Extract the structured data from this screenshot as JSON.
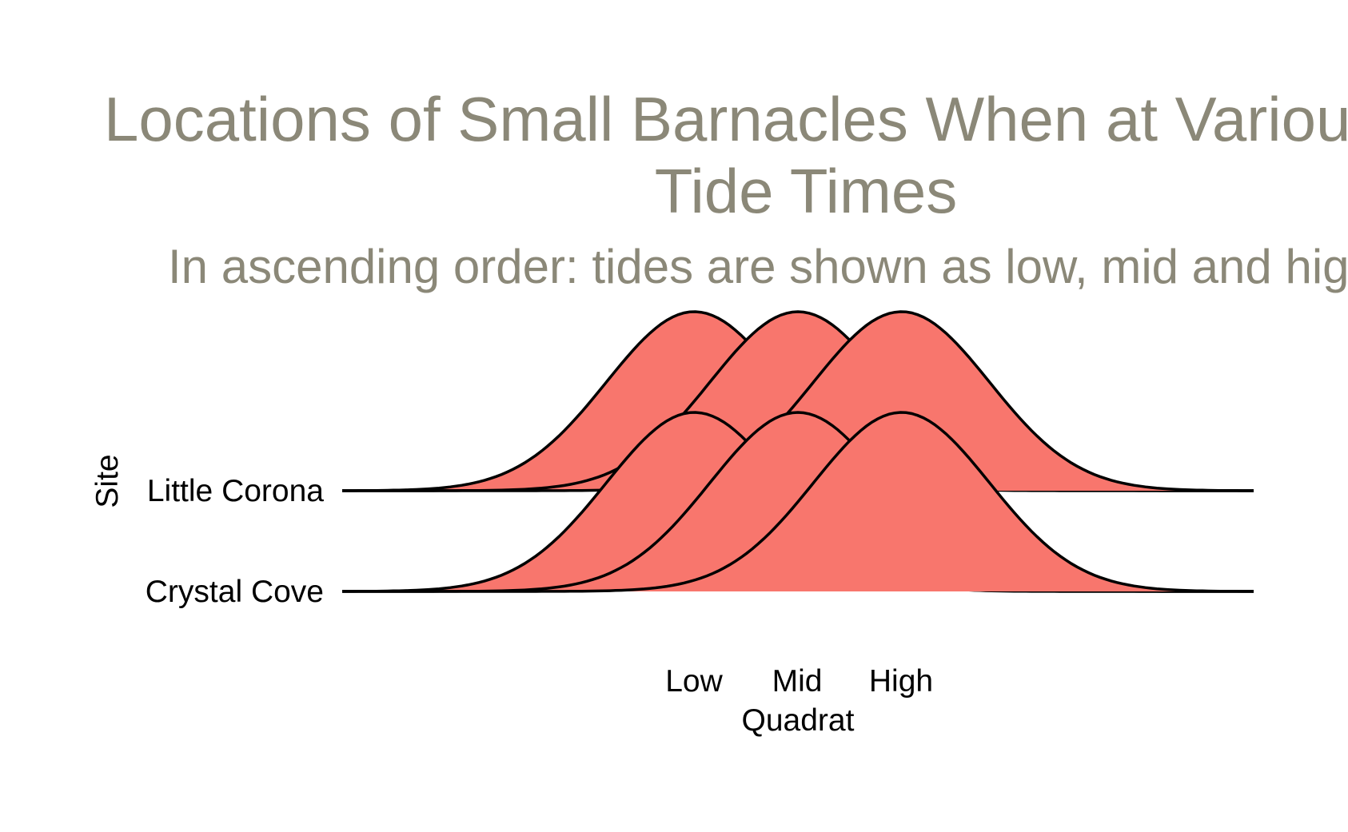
{
  "chart_data": {
    "type": "ridgeline",
    "title": "Locations of Small Barnacles When at Various Tide Times",
    "subtitle": "In ascending order: tides are shown as low, mid and high",
    "xlabel": "Quadrat",
    "ylabel": "Site",
    "categories_x": [
      "Low",
      "Mid",
      "High"
    ],
    "sites": [
      "Little Corona",
      "Crystal Cove"
    ],
    "series": [
      {
        "site": "Little Corona",
        "densities": [
          {
            "peak": "Low",
            "sd": 0.85
          },
          {
            "peak": "Mid",
            "sd": 0.85
          },
          {
            "peak": "High",
            "sd": 0.85
          }
        ]
      },
      {
        "site": "Crystal Cove",
        "densities": [
          {
            "peak": "Low",
            "sd": 0.85
          },
          {
            "peak": "Mid",
            "sd": 0.85
          },
          {
            "peak": "High",
            "sd": 0.85
          }
        ]
      }
    ],
    "xlim": [
      -2.4,
      6.4
    ],
    "fill_color": "#F8766D",
    "line_color": "#000000",
    "title_color": "#8B8878"
  }
}
